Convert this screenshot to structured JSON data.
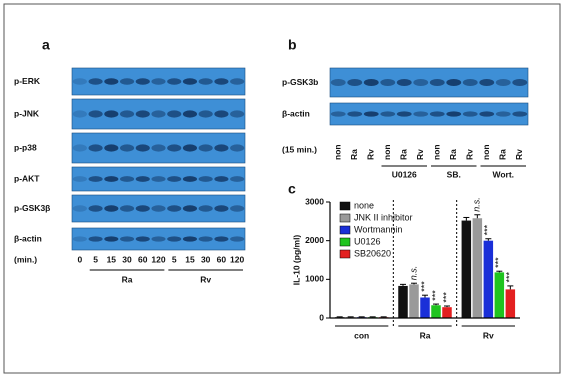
{
  "panel_a": {
    "label": "a",
    "rows": [
      "p-ERK",
      "p-JNK",
      "p-p38",
      "p-AKT",
      "p-GSK3β",
      "β-actin"
    ],
    "time_label": "(min.)",
    "lanes": [
      "0",
      "5",
      "15",
      "30",
      "60",
      "120",
      "5",
      "15",
      "30",
      "60",
      "120"
    ],
    "groups": [
      "Ra",
      "Rv"
    ]
  },
  "panel_b": {
    "label": "b",
    "rows": [
      "p-GSK3b",
      "β-actin"
    ],
    "time_label": "(15 min.)",
    "lanes": [
      "non",
      "Ra",
      "Rv",
      "non",
      "Ra",
      "Rv",
      "non",
      "Ra",
      "Rv",
      "non",
      "Ra",
      "Rv"
    ],
    "groups": [
      "U0126",
      "SB.",
      "Wort."
    ]
  },
  "chart_data": {
    "type": "bar",
    "panel_label": "c",
    "ylabel": "IL-10 (pg/ml)",
    "categories": [
      "con",
      "Ra",
      "Rv"
    ],
    "series": [
      {
        "name": "none",
        "color": "#111111",
        "values": [
          20,
          830,
          2520
        ],
        "errors": [
          10,
          40,
          80
        ]
      },
      {
        "name": "JNK II inhibitor",
        "color": "#9a9a9a",
        "values": [
          20,
          870,
          2580
        ],
        "errors": [
          10,
          30,
          90
        ]
      },
      {
        "name": "Wortmannin",
        "color": "#1a2fd8",
        "values": [
          20,
          530,
          2000
        ],
        "errors": [
          10,
          60,
          50
        ]
      },
      {
        "name": "U0126",
        "color": "#1fc41f",
        "values": [
          20,
          330,
          1180
        ],
        "errors": [
          10,
          30,
          30
        ]
      },
      {
        "name": "SB20620",
        "color": "#e32020",
        "values": [
          20,
          280,
          740
        ],
        "errors": [
          10,
          30,
          90
        ]
      }
    ],
    "ylim": [
      0,
      3000
    ],
    "yticks": [
      0,
      1000,
      2000,
      3000
    ],
    "annotations": [
      {
        "text": "n.s.",
        "category": "Ra",
        "series": "JNK II inhibitor"
      },
      {
        "text": "***",
        "category": "Ra",
        "series": "Wortmannin"
      },
      {
        "text": "***",
        "category": "Ra",
        "series": "U0126"
      },
      {
        "text": "***",
        "category": "Ra",
        "series": "SB20620"
      },
      {
        "text": "n.s.",
        "category": "Rv",
        "series": "JNK II inhibitor"
      },
      {
        "text": "***",
        "category": "Rv",
        "series": "Wortmannin"
      },
      {
        "text": "***",
        "category": "Rv",
        "series": "U0126"
      },
      {
        "text": "***",
        "category": "Rv",
        "series": "SB20620"
      }
    ]
  }
}
